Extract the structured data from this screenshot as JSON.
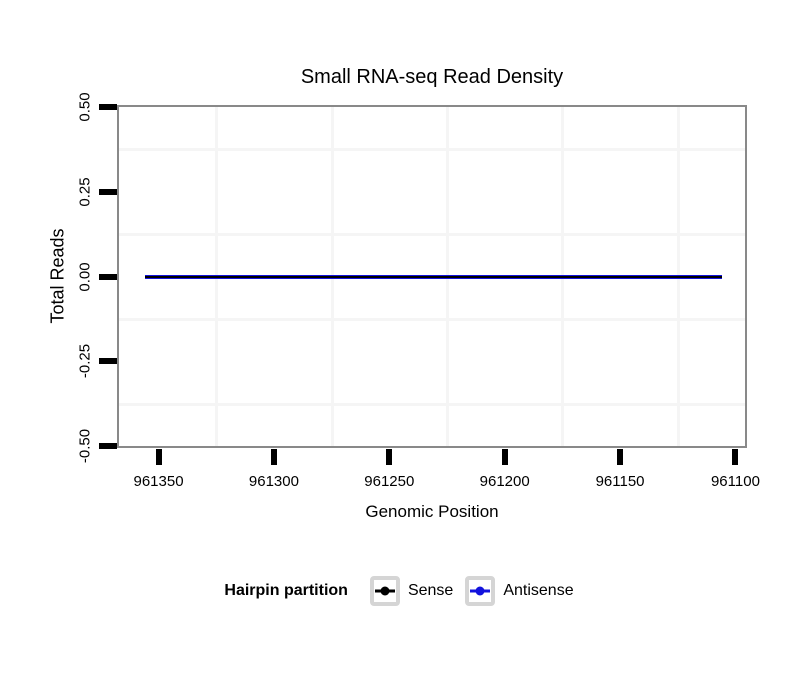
{
  "title": "Small RNA-seq Read Density",
  "axes": {
    "x_title": "Genomic Position",
    "y_title": "Total Reads",
    "x_tick_values": [
      961350,
      961300,
      961250,
      961200,
      961150,
      961100
    ],
    "x_tick_labels": [
      "961350",
      "961300",
      "961250",
      "961200",
      "961150",
      "961100"
    ],
    "y_tick_values": [
      0.5,
      0.25,
      0.0,
      -0.25,
      -0.5
    ],
    "y_tick_labels": [
      "0.50",
      "0.25",
      "0.00",
      "-0.25",
      "-0.50"
    ]
  },
  "legend": {
    "title": "Hairpin partition",
    "position": "bottom",
    "items": [
      {
        "label": "Sense",
        "color": "#000000"
      },
      {
        "label": "Antisense",
        "color": "#1212dd"
      }
    ]
  },
  "colors": {
    "panel_border": "#898989",
    "minor_grid": "#f5f5f5",
    "tick": "#000000",
    "text": "#000000",
    "sense": "#000000",
    "antisense": "#1212dd",
    "legend_key_border": "#d5d5d5"
  },
  "chart_data": {
    "type": "line",
    "title": "Small RNA-seq Read Density",
    "xlabel": "Genomic Position",
    "ylabel": "Total Reads",
    "x_axis_reversed": true,
    "xlim": [
      961368,
      961095
    ],
    "ylim": [
      -0.505,
      0.505
    ],
    "x_ticks": [
      961350,
      961300,
      961250,
      961200,
      961150,
      961100
    ],
    "y_ticks": [
      0.5,
      0.25,
      0.0,
      -0.25,
      -0.5
    ],
    "grid": "minor_only",
    "legend_title": "Hairpin partition",
    "legend_position": "bottom",
    "series": [
      {
        "name": "Sense",
        "color": "#000000",
        "x_span": [
          961356,
          961106
        ],
        "y_constant": 0
      },
      {
        "name": "Antisense",
        "color": "#1212dd",
        "x_span": [
          961356,
          961106
        ],
        "y_constant": 0
      }
    ]
  }
}
